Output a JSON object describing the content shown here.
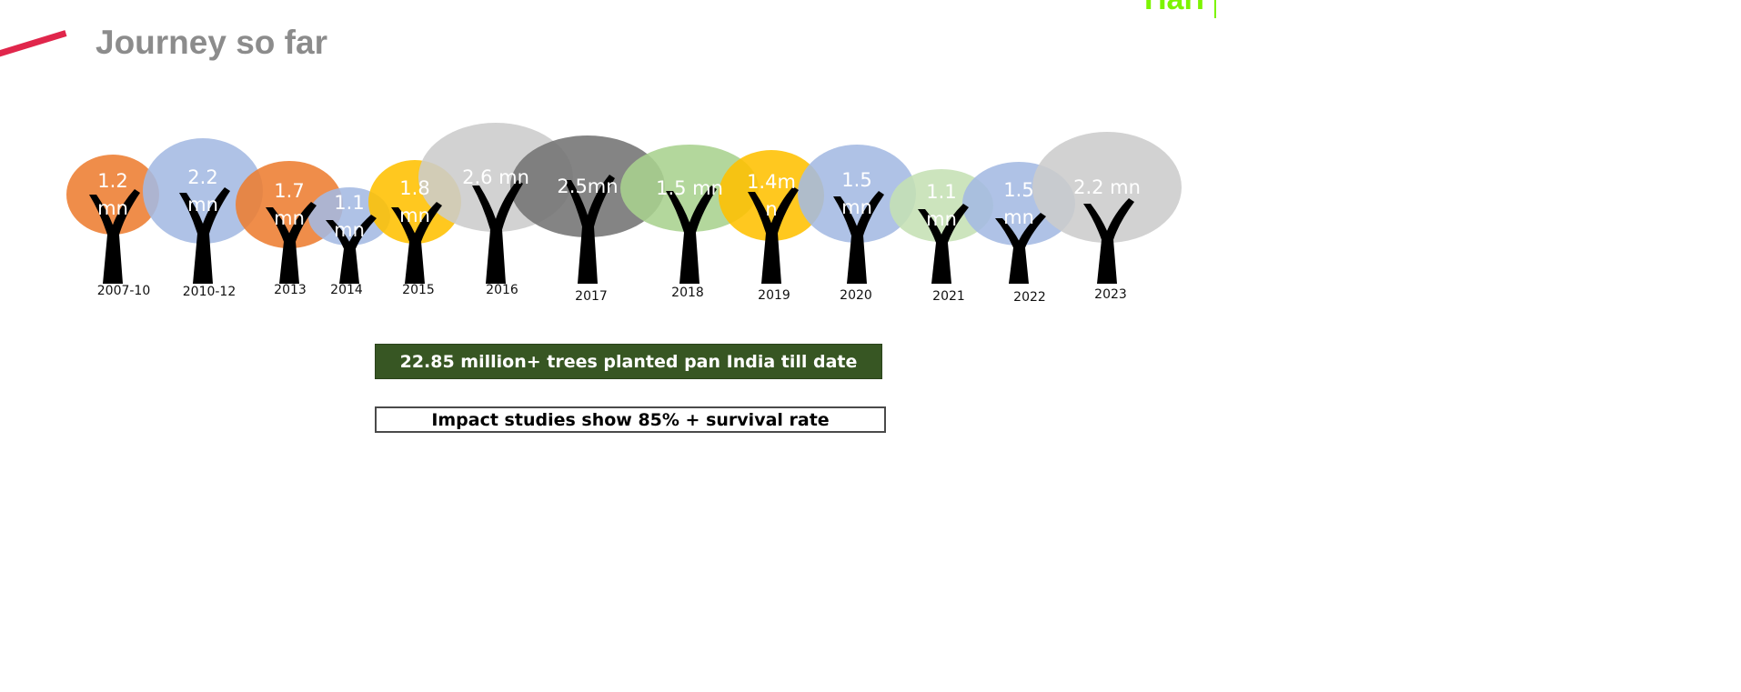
{
  "header": {
    "title": "Journey so far",
    "corner_fragment": "Hari",
    "accent_color": "#e0264b",
    "corner_color": "#7cf400"
  },
  "timeline": {
    "trees": [
      {
        "year": "2007-10",
        "label": [
          "1.2",
          "mn"
        ],
        "color": "#ed7d31",
        "size": "small"
      },
      {
        "year": "2010-12",
        "label": [
          "2.2",
          "mn"
        ],
        "color": "#a4b9e3",
        "size": "large"
      },
      {
        "year": "2013",
        "label": [
          "1.7",
          "mn"
        ],
        "color": "#ed7d31",
        "size": "medium"
      },
      {
        "year": "2014",
        "label": [
          "1.1",
          "mn"
        ],
        "color": "#a4b9e3",
        "size": "small"
      },
      {
        "year": "2015",
        "label": [
          "1.8",
          "mn"
        ],
        "color": "#ffc000",
        "size": "small"
      },
      {
        "year": "2016",
        "label": [
          "2.6 mn"
        ],
        "color": "#cccccc",
        "size": "large"
      },
      {
        "year": "2017",
        "label": [
          "2.5mn"
        ],
        "color": "#737373",
        "size": "large"
      },
      {
        "year": "2018",
        "label": [
          "1.5 mn"
        ],
        "color": "#a9d18e",
        "size": "large"
      },
      {
        "year": "2019",
        "label": [
          "1.4m",
          "n"
        ],
        "color": "#ffc000",
        "size": "medium"
      },
      {
        "year": "2020",
        "label": [
          "1.5",
          "mn"
        ],
        "color": "#a4b9e3",
        "size": "medium"
      },
      {
        "year": "2021",
        "label": [
          "1.1",
          "mn"
        ],
        "color": "#c5e0b4",
        "size": "small"
      },
      {
        "year": "2022",
        "label": [
          "1.5",
          "mn"
        ],
        "color": "#a4b9e3",
        "size": "medium"
      },
      {
        "year": "2023",
        "label": [
          "2.2 mn"
        ],
        "color": "#cccccc",
        "size": "large"
      }
    ]
  },
  "banners": {
    "total": "22.85 million+ trees planted pan India till date",
    "total_color": "#375623",
    "survival": "Impact studies show 85% + survival rate"
  }
}
